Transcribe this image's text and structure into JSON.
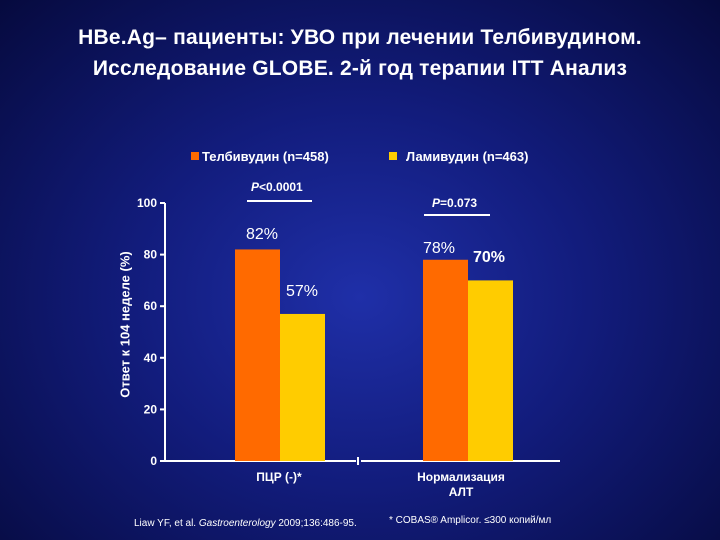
{
  "header": {
    "title_line1": "HBe.Ag– пациенты: УВО при лечении Телбивудином.",
    "title_line2": "Исследование GLOBE. 2-й год терапии ITT Анализ"
  },
  "colors": {
    "telbivudine": "#ff6a00",
    "lamivudine": "#ffcc00",
    "background": "#121c7c",
    "text": "#ffffff"
  },
  "chart_data": {
    "type": "bar",
    "categories": [
      "ПЦР (-)*",
      "Нормализация АЛТ"
    ],
    "category_lines": [
      [
        "ПЦР (-)*"
      ],
      [
        "Нормализация",
        "АЛТ"
      ]
    ],
    "series": [
      {
        "name": "Телбивудин (n=458)",
        "values": [
          82,
          78
        ],
        "labels": [
          "82%",
          "78%"
        ]
      },
      {
        "name": "Ламивудин (n=463)",
        "values": [
          57,
          70
        ],
        "labels": [
          "57%",
          "70%"
        ]
      }
    ],
    "ylabel": "Ответ к 104 неделе (%)",
    "ylim": [
      0,
      100
    ],
    "yticks": [
      0,
      20,
      40,
      60,
      80,
      100
    ],
    "grid": false,
    "legend": "top",
    "p_values": [
      {
        "prefix": "P",
        "text": "<0.0001"
      },
      {
        "prefix": "P",
        "text": "=0.073"
      }
    ]
  },
  "footer": {
    "citation_pre": "Liaw YF, et al. ",
    "citation_journal": "Gastroenterology",
    "citation_post": " 2009;136:486-95.",
    "footnote": "* COBAS® Amplicor. ≤300 копий/мл"
  }
}
